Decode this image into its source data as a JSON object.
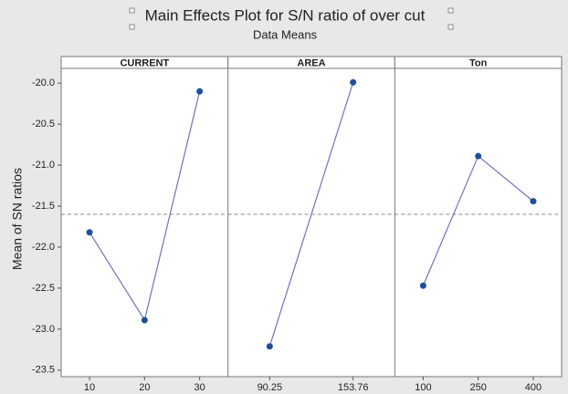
{
  "chart_data": {
    "type": "line",
    "title": "Main Effects Plot for S/N ratio of over cut",
    "subtitle": "Data Means",
    "y_label": "Mean of SN ratios",
    "color": "#1f4e9c",
    "line_color": "#6f74b8",
    "ylim": [
      -23.58,
      -19.82
    ],
    "yticks": [
      {
        "value": -20.0,
        "label": "-20.0"
      },
      {
        "value": -20.5,
        "label": "-20.5"
      },
      {
        "value": -21.0,
        "label": "-21.0"
      },
      {
        "value": -21.5,
        "label": "-21.5"
      },
      {
        "value": -22.0,
        "label": "-22.0"
      },
      {
        "value": -22.5,
        "label": "-22.5"
      },
      {
        "value": -23.0,
        "label": "-23.0"
      },
      {
        "value": -23.5,
        "label": "-23.5"
      }
    ],
    "reference_line": -21.6,
    "panels": [
      {
        "name": "CURRENT",
        "categories": [
          "10",
          "20",
          "30"
        ],
        "values": [
          -21.82,
          -22.89,
          -20.1
        ]
      },
      {
        "name": "AREA",
        "categories": [
          "90.25",
          "153.76"
        ],
        "values": [
          -23.21,
          -19.99
        ]
      },
      {
        "name": "Ton",
        "categories": [
          "100",
          "250",
          "400"
        ],
        "values": [
          -22.47,
          -20.89,
          -21.44
        ]
      }
    ]
  }
}
